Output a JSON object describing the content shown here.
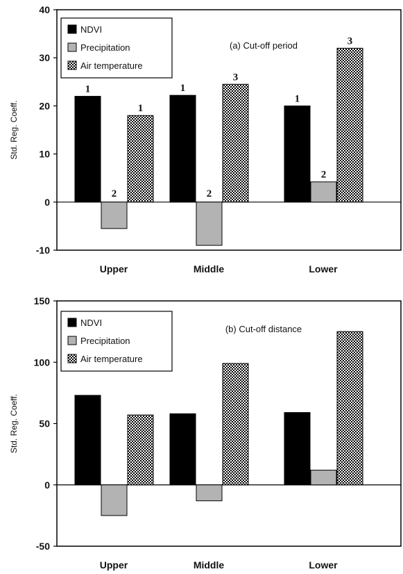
{
  "colors": {
    "ndvi": "#000000",
    "precipitation": "#b3b3b3",
    "air_temperature_pattern": "checkered-black-white"
  },
  "chart_data": [
    {
      "type": "bar",
      "title": "(a) Cut-off period",
      "ylabel": "Std. Reg. Coeff.",
      "xlabel": "",
      "categories": [
        "Upper",
        "Middle",
        "Lower"
      ],
      "ylim": [
        -10,
        40
      ],
      "yticks": [
        -10,
        0,
        10,
        20,
        30,
        40
      ],
      "legend_position": "top-left",
      "series": [
        {
          "name": "NDVI",
          "values": [
            22,
            22.2,
            20
          ],
          "ranks": [
            "1",
            "1",
            "1"
          ]
        },
        {
          "name": "Precipitation",
          "values": [
            -5.5,
            -9,
            4.2
          ],
          "ranks": [
            "2",
            "2",
            "2"
          ]
        },
        {
          "name": "Air temperature",
          "values": [
            18,
            24.5,
            32
          ],
          "ranks": [
            "1",
            "3",
            "3"
          ]
        }
      ]
    },
    {
      "type": "bar",
      "title": "(b) Cut-off distance",
      "ylabel": "Std. Reg. Coeff.",
      "xlabel": "",
      "categories": [
        "Upper",
        "Middle",
        "Lower"
      ],
      "ylim": [
        -50,
        150
      ],
      "yticks": [
        -50,
        0,
        50,
        100,
        150
      ],
      "legend_position": "top-left",
      "series": [
        {
          "name": "NDVI",
          "values": [
            73,
            58,
            59
          ]
        },
        {
          "name": "Precipitation",
          "values": [
            -25,
            -13,
            12
          ]
        },
        {
          "name": "Air temperature",
          "values": [
            57,
            99,
            125
          ]
        }
      ]
    }
  ]
}
